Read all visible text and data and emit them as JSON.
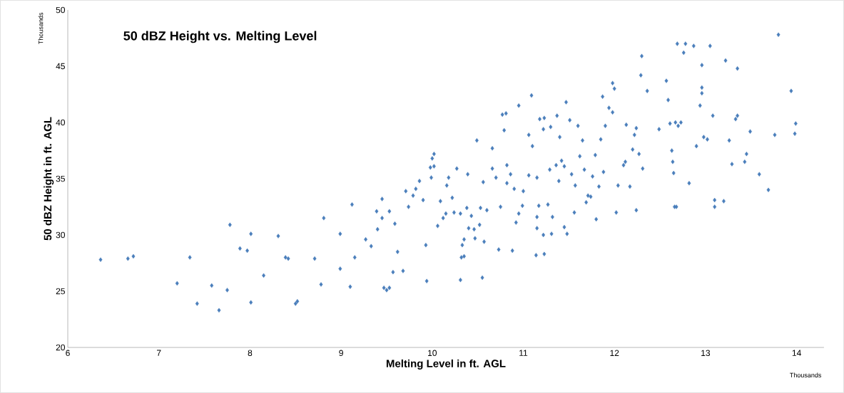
{
  "chart_data": {
    "type": "scatter",
    "title": "50 dBZ Height vs. Melting Level",
    "xlabel": "Melting Level in ft. AGL",
    "ylabel": "50  dBZ  Height  in  ft.  AGL",
    "annotations": [
      "Thousands",
      "Thousands"
    ],
    "xlim": [
      6,
      14.3
    ],
    "xticks": [
      6,
      7,
      8,
      9,
      10,
      11,
      12,
      13,
      14
    ],
    "ylim": [
      20,
      50
    ],
    "yticks": [
      20,
      25,
      30,
      35,
      40,
      45,
      50
    ],
    "marker": "diamond",
    "series": [
      {
        "color": "#4a7ebb",
        "x": [
          6.36,
          6.66,
          6.72,
          7.2,
          7.34,
          7.42,
          7.58,
          7.66,
          7.75,
          7.78,
          7.89,
          7.97,
          8.01,
          8.01,
          8.15,
          8.31,
          8.39,
          8.42,
          8.5,
          8.52,
          8.71,
          8.78,
          8.81,
          8.99,
          8.99,
          9.1,
          9.12,
          9.15,
          9.27,
          9.33,
          9.39,
          9.4,
          9.45,
          9.45,
          9.47,
          9.5,
          9.53,
          9.53,
          9.57,
          9.59,
          9.62,
          9.71,
          9.68,
          9.74,
          9.79,
          9.82,
          9.86,
          9.9,
          9.93,
          9.94,
          9.98,
          9.99,
          10.02,
          10.0,
          10.02,
          10.06,
          10.09,
          10.12,
          10.15,
          10.16,
          10.18,
          10.22,
          10.24,
          10.27,
          10.31,
          10.31,
          10.32,
          10.33,
          10.35,
          10.35,
          10.38,
          10.39,
          10.4,
          10.43,
          10.46,
          10.47,
          10.49,
          10.52,
          10.53,
          10.56,
          10.57,
          10.55,
          10.6,
          10.66,
          10.66,
          10.7,
          10.73,
          10.75,
          10.77,
          10.79,
          10.81,
          10.82,
          10.82,
          10.86,
          10.88,
          10.9,
          10.92,
          10.95,
          10.99,
          11.0,
          11.06,
          11.09,
          11.1,
          11.15,
          11.15,
          11.17,
          11.22,
          11.27,
          11.29,
          11.3,
          11.36,
          11.39,
          11.45,
          11.45,
          11.47,
          11.14,
          11.23,
          11.18,
          11.23,
          11.4,
          11.37,
          11.06,
          10.95,
          11.48,
          11.31,
          11.15,
          11.32,
          11.22,
          11.42,
          11.51,
          11.53,
          11.56,
          11.57,
          11.6,
          11.62,
          11.65,
          11.67,
          11.69,
          11.71,
          11.74,
          11.76,
          11.79,
          11.8,
          11.83,
          11.85,
          11.87,
          11.88,
          11.9,
          11.94,
          11.98,
          11.98,
          12.0,
          12.02,
          12.04,
          12.1,
          12.12,
          12.13,
          12.17,
          12.2,
          12.22,
          12.24,
          12.24,
          12.27,
          12.29,
          12.3,
          12.31,
          12.36,
          12.49,
          12.57,
          12.59,
          12.61,
          12.63,
          12.64,
          12.65,
          12.66,
          12.68,
          12.67,
          12.69,
          12.7,
          12.73,
          12.76,
          12.78,
          12.82,
          12.87,
          12.9,
          12.94,
          12.96,
          12.96,
          12.96,
          12.98,
          13.02,
          13.05,
          13.08,
          13.1,
          13.1,
          13.2,
          13.22,
          13.26,
          13.29,
          13.33,
          13.35,
          13.35,
          13.43,
          13.45,
          13.49,
          13.59,
          13.69,
          13.76,
          13.8,
          13.94,
          13.98,
          13.99
        ],
        "values": [
          27.8,
          27.9,
          28.1,
          25.7,
          28.0,
          23.9,
          25.5,
          23.3,
          25.1,
          30.9,
          28.8,
          28.6,
          30.1,
          24.0,
          26.4,
          29.9,
          28.0,
          27.9,
          23.9,
          24.1,
          27.9,
          25.6,
          31.5,
          30.1,
          27.0,
          25.4,
          32.7,
          28.0,
          29.6,
          29.0,
          32.1,
          30.5,
          31.5,
          33.2,
          25.3,
          25.1,
          25.3,
          32.1,
          26.7,
          31.0,
          28.5,
          33.9,
          26.8,
          32.5,
          33.5,
          34.1,
          34.8,
          33.1,
          29.1,
          25.9,
          36.0,
          35.1,
          37.2,
          36.8,
          36.1,
          30.8,
          33.0,
          31.5,
          31.9,
          34.4,
          35.1,
          33.3,
          32.0,
          35.9,
          31.9,
          26.0,
          28.0,
          29.1,
          29.6,
          28.1,
          32.4,
          35.4,
          30.6,
          31.7,
          30.5,
          29.7,
          38.4,
          30.9,
          32.4,
          34.7,
          29.4,
          26.2,
          32.2,
          37.7,
          35.9,
          35.1,
          28.7,
          32.5,
          40.7,
          39.3,
          40.8,
          36.2,
          34.6,
          35.4,
          28.6,
          34.1,
          31.1,
          31.9,
          32.6,
          33.9,
          35.3,
          42.4,
          37.9,
          35.1,
          31.6,
          32.6,
          30.0,
          32.7,
          35.8,
          39.6,
          36.2,
          34.8,
          36.1,
          30.7,
          41.8,
          28.2,
          28.3,
          40.3,
          40.4,
          38.7,
          40.6,
          38.9,
          41.5,
          30.1,
          30.1,
          30.6,
          31.6,
          39.4,
          36.6,
          40.2,
          35.4,
          32.0,
          34.4,
          39.7,
          37.0,
          38.4,
          35.8,
          32.9,
          33.5,
          33.4,
          35.2,
          37.1,
          31.4,
          34.3,
          38.5,
          42.3,
          35.6,
          39.7,
          41.3,
          40.9,
          43.5,
          43.0,
          32.0,
          34.4,
          36.2,
          36.5,
          39.8,
          34.3,
          37.6,
          38.9,
          39.5,
          32.2,
          37.2,
          44.2,
          45.9,
          35.9,
          42.8,
          39.4,
          43.7,
          42.0,
          39.9,
          37.5,
          36.5,
          35.5,
          32.5,
          32.5,
          40.0,
          47.0,
          39.7,
          40.0,
          46.2,
          47.0,
          34.6,
          46.8,
          37.9,
          41.5,
          45.1,
          42.6,
          43.1,
          38.7,
          38.5,
          46.8,
          40.6,
          33.1,
          32.5,
          33.0,
          45.5,
          38.4,
          36.3,
          40.3,
          40.6,
          44.8,
          36.5,
          37.2,
          39.2,
          35.4,
          34.0,
          38.9,
          47.8,
          42.8,
          39.0,
          39.9
        ]
      }
    ]
  }
}
